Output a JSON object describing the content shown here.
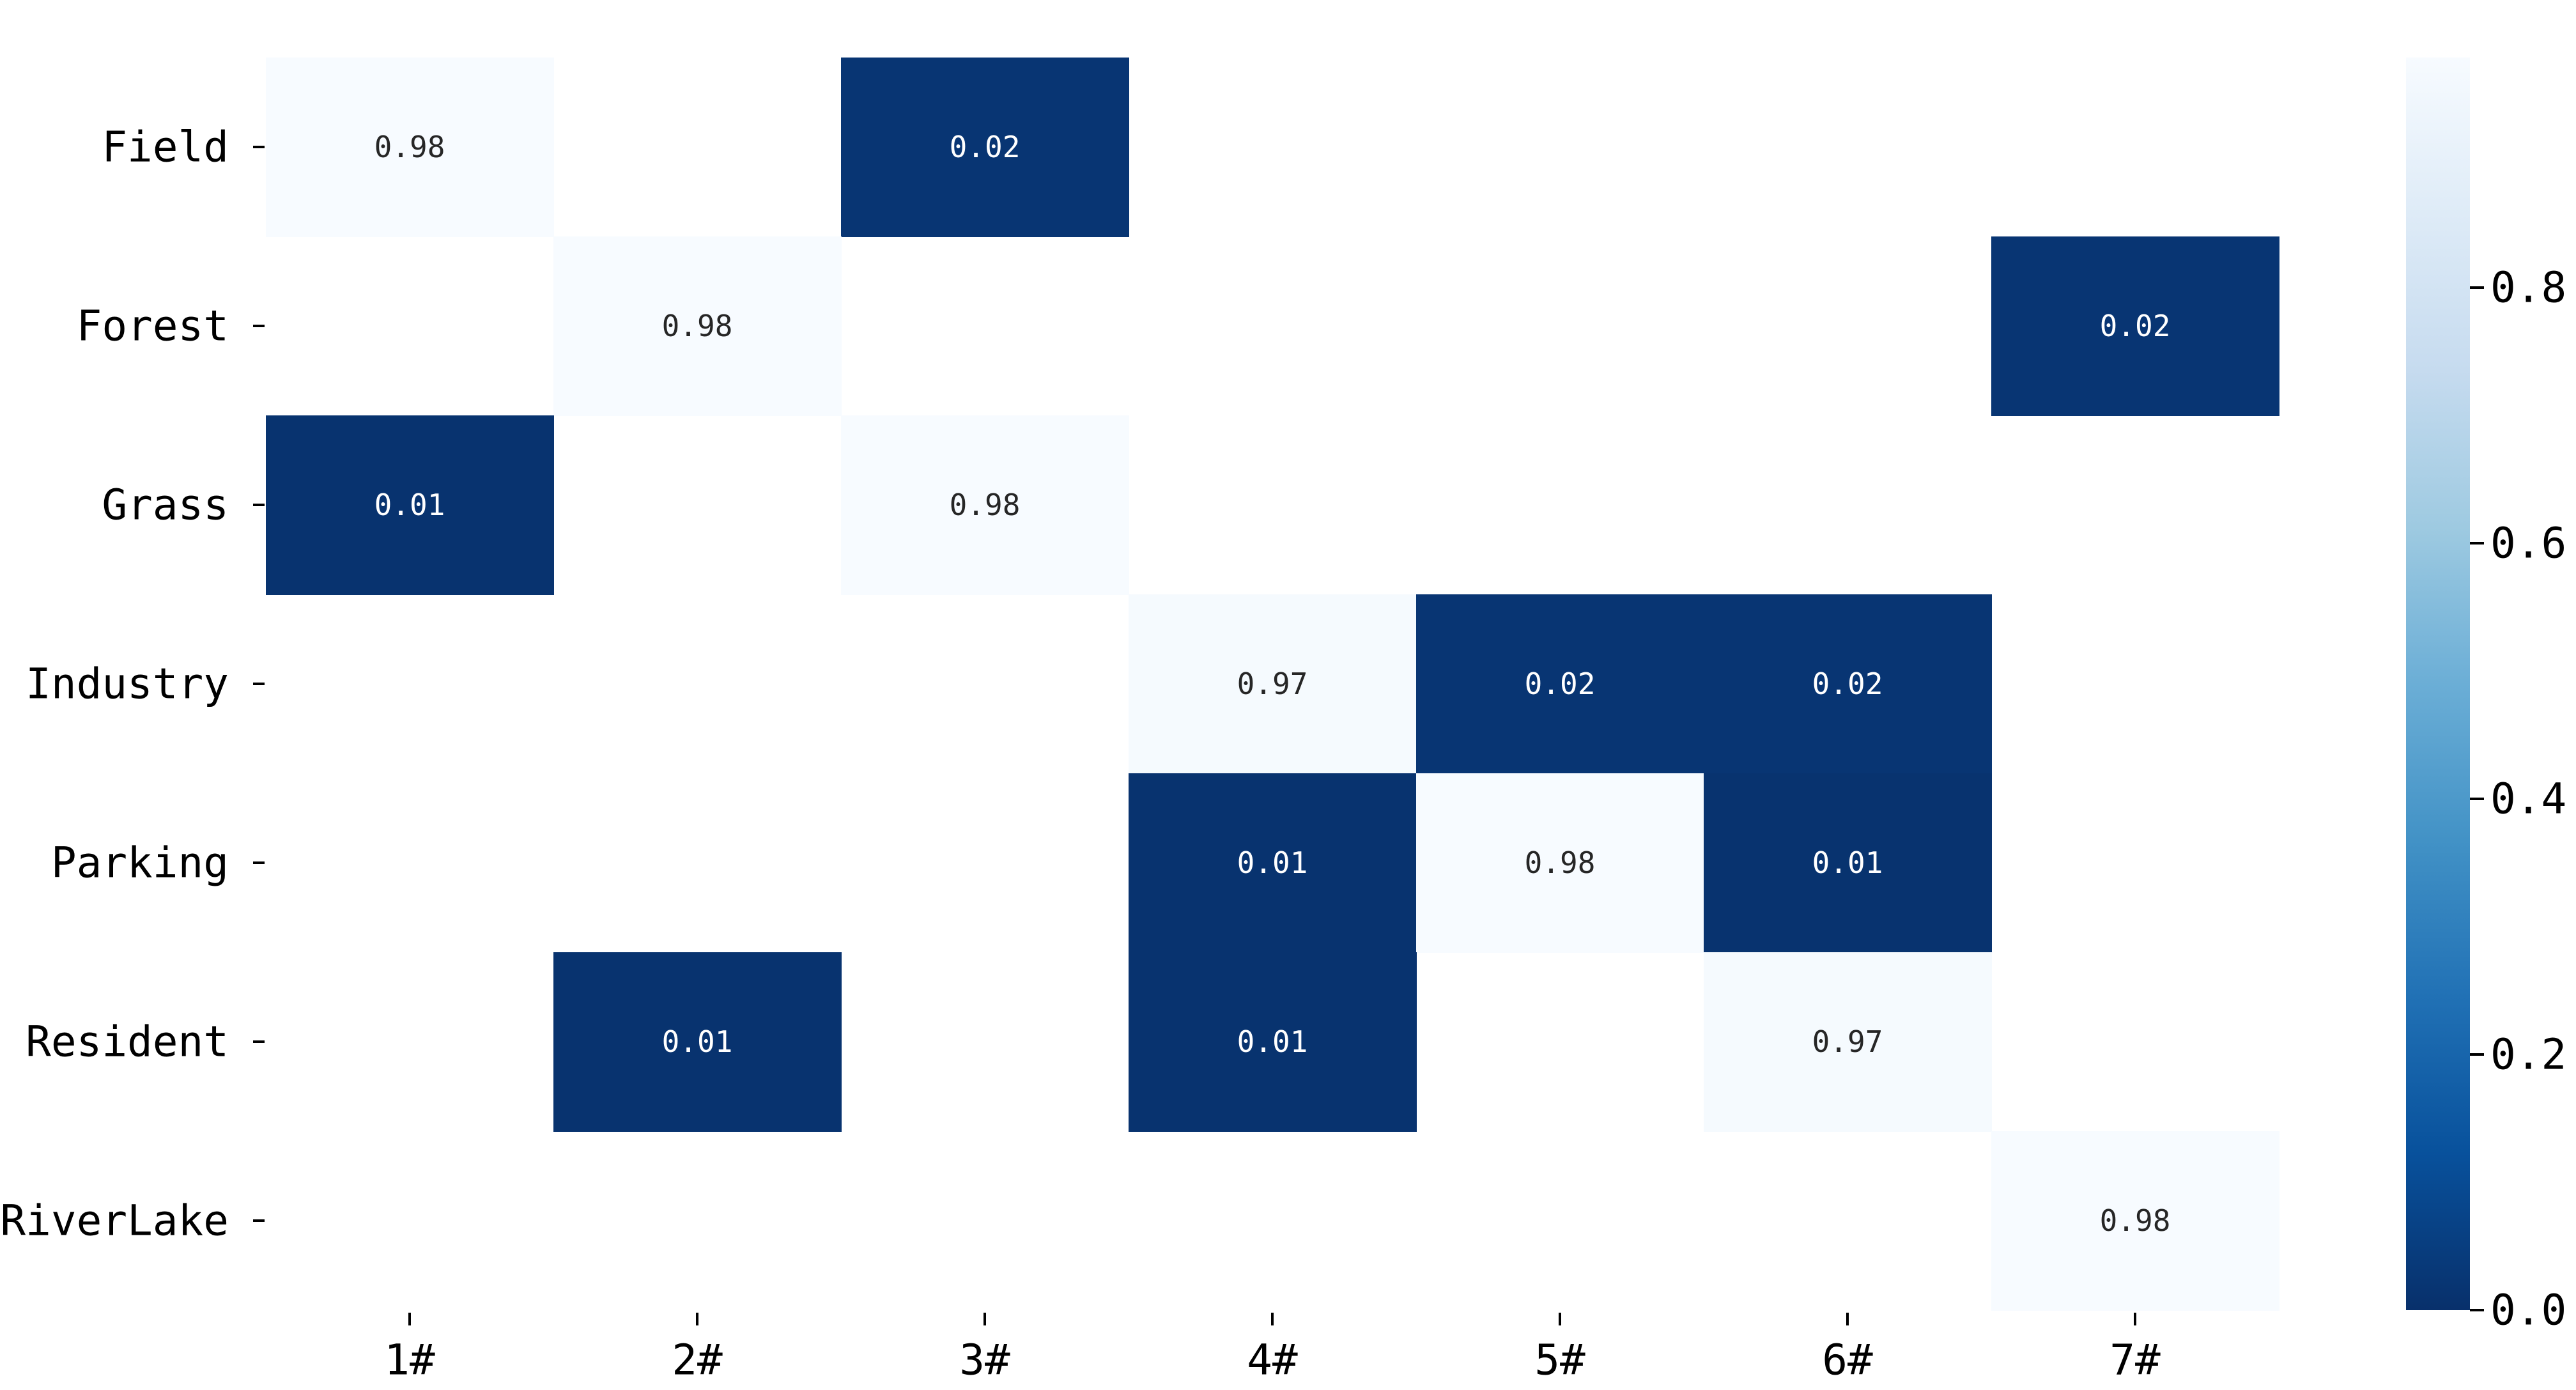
{
  "chart_data": {
    "type": "heatmap",
    "title": "",
    "xlabel": "",
    "ylabel": "",
    "rows": [
      "Field",
      "Forest",
      "Grass",
      "Industry",
      "Parking",
      "Resident",
      "RiverLake"
    ],
    "columns": [
      "1#",
      "2#",
      "3#",
      "4#",
      "5#",
      "6#",
      "7#"
    ],
    "cells": [
      {
        "row": 0,
        "col": 0,
        "value": 0.98,
        "label": "0.98"
      },
      {
        "row": 0,
        "col": 2,
        "value": 0.02,
        "label": "0.02"
      },
      {
        "row": 1,
        "col": 1,
        "value": 0.98,
        "label": "0.98"
      },
      {
        "row": 1,
        "col": 6,
        "value": 0.02,
        "label": "0.02"
      },
      {
        "row": 2,
        "col": 0,
        "value": 0.01,
        "label": "0.01"
      },
      {
        "row": 2,
        "col": 2,
        "value": 0.98,
        "label": "0.98"
      },
      {
        "row": 3,
        "col": 3,
        "value": 0.97,
        "label": "0.97"
      },
      {
        "row": 3,
        "col": 4,
        "value": 0.02,
        "label": "0.02"
      },
      {
        "row": 3,
        "col": 5,
        "value": 0.02,
        "label": "0.02"
      },
      {
        "row": 4,
        "col": 3,
        "value": 0.01,
        "label": "0.01"
      },
      {
        "row": 4,
        "col": 4,
        "value": 0.98,
        "label": "0.98"
      },
      {
        "row": 4,
        "col": 5,
        "value": 0.01,
        "label": "0.01"
      },
      {
        "row": 5,
        "col": 1,
        "value": 0.01,
        "label": "0.01"
      },
      {
        "row": 5,
        "col": 3,
        "value": 0.01,
        "label": "0.01"
      },
      {
        "row": 5,
        "col": 5,
        "value": 0.97,
        "label": "0.97"
      },
      {
        "row": 6,
        "col": 6,
        "value": 0.98,
        "label": "0.98"
      }
    ],
    "colorbar": {
      "cmap": "Blues_r",
      "vmin": 0.0,
      "vmax": 0.98,
      "ticks": [
        0.0,
        0.2,
        0.4,
        0.6,
        0.8
      ],
      "tick_labels": [
        "0.0",
        "0.2",
        "0.4",
        "0.6",
        "0.8"
      ],
      "colors": [
        "#08306b",
        "#08519c",
        "#2171b5",
        "#4292c6",
        "#6baed6",
        "#9ecae1",
        "#c6dbef",
        "#deebf7",
        "#f7fbff"
      ]
    },
    "grid": false,
    "legend": "right"
  }
}
